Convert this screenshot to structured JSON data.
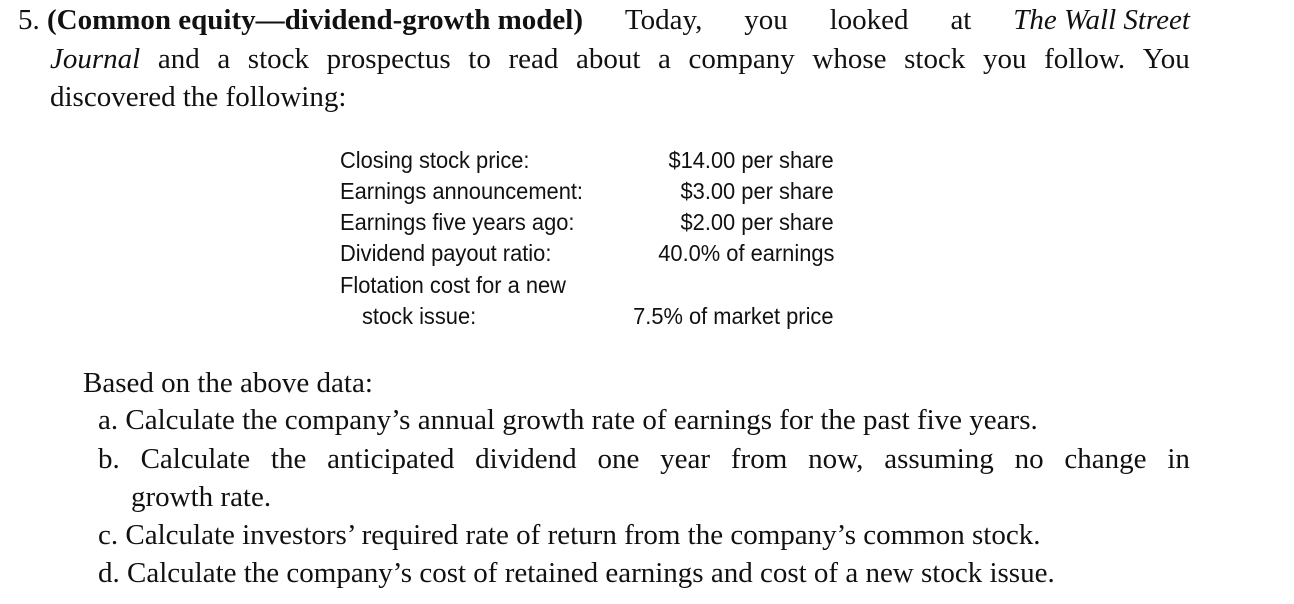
{
  "problem": {
    "number": "5.",
    "title": "(Common equity—dividend-growth model)",
    "line1_words": [
      "Today,",
      "you",
      "looked",
      "at"
    ],
    "journal_part1": "The Wall Street",
    "journal_part2": "Journal",
    "line2_rest_words": [
      "and",
      "a",
      "stock",
      "prospectus",
      "to",
      "read",
      "about",
      "a",
      "company",
      "whose",
      "stock",
      "you",
      "follow.",
      "You"
    ],
    "line3": "discovered the following:"
  },
  "data_table": {
    "rows": [
      {
        "label": "Closing stock price:",
        "value": "$14.00 per share"
      },
      {
        "label": "Earnings announcement:",
        "value": "$3.00 per share"
      },
      {
        "label": "Earnings five years ago:",
        "value": "$2.00 per share"
      },
      {
        "label": "Dividend payout ratio:",
        "value": "40.0% of earnings"
      },
      {
        "label": "Flotation cost for a new",
        "value": ""
      },
      {
        "label": "stock issue:",
        "value": "7.5% of market price"
      }
    ]
  },
  "questions": {
    "intro": "Based on the above data:",
    "a": "a. Calculate the company’s annual growth rate of earnings for the past five years.",
    "b_words": [
      "b.",
      "Calculate",
      "the",
      "anticipated",
      "dividend",
      "one",
      "year",
      "from",
      "now,",
      "assuming",
      "no",
      "change",
      "in"
    ],
    "b_line2": "growth rate.",
    "c": "c. Calculate investors’ required rate of return from the company’s common stock.",
    "d": "d. Calculate the company’s cost of retained earnings and cost of a new stock issue."
  }
}
